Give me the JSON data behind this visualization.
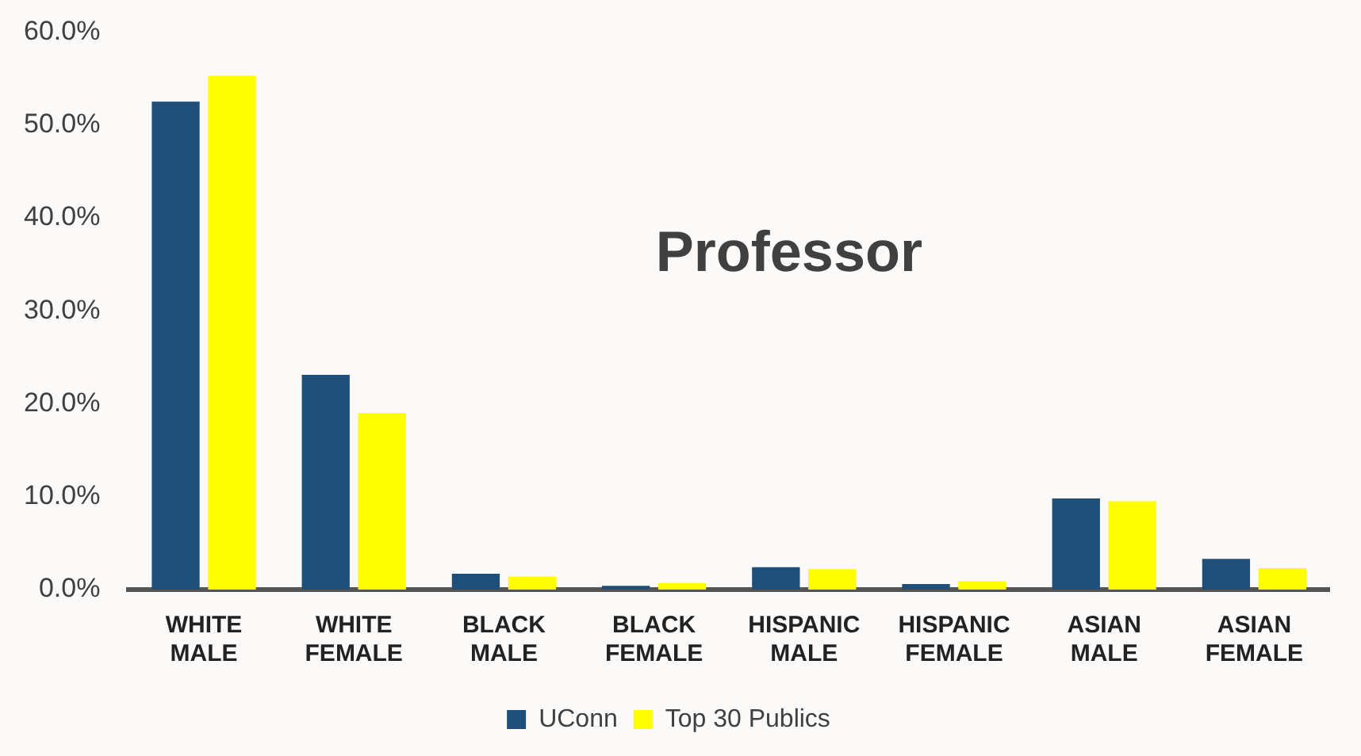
{
  "chart_data": {
    "type": "bar",
    "title": "Professor",
    "categories": [
      "WHITE MALE",
      "WHITE FEMALE",
      "BLACK MALE",
      "BLACK FEMALE",
      "HISPANIC MALE",
      "HISPANIC FEMALE",
      "ASIAN MALE",
      "ASIAN FEMALE"
    ],
    "series": [
      {
        "name": "UConn",
        "color": "#1f4e79",
        "values": [
          52.5,
          23.1,
          1.7,
          0.4,
          2.4,
          0.6,
          9.8,
          3.3
        ]
      },
      {
        "name": "Top 30 Publics",
        "color": "#ffff00",
        "values": [
          55.3,
          19.0,
          1.4,
          0.7,
          2.2,
          0.9,
          9.5,
          2.3
        ]
      }
    ],
    "ylim": [
      0,
      60
    ],
    "yticks": [
      {
        "value": 0,
        "label": "0.0%"
      },
      {
        "value": 10,
        "label": "10.0%"
      },
      {
        "value": 20,
        "label": "20.0%"
      },
      {
        "value": 30,
        "label": "30.0%"
      },
      {
        "value": 40,
        "label": "40.0%"
      },
      {
        "value": 50,
        "label": "50.0%"
      },
      {
        "value": 60,
        "label": "60.0%"
      }
    ],
    "grid": false,
    "legend": "bottom"
  }
}
